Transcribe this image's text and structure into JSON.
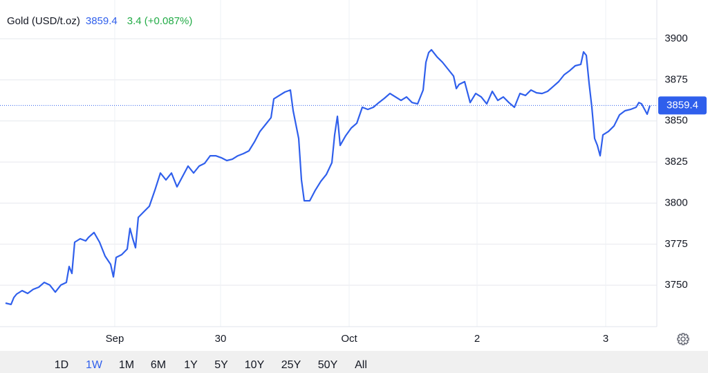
{
  "header": {
    "symbol": "Gold (USD/t.oz)",
    "change": "3.4 (+0.087%)"
  },
  "range_buttons": [
    "1D",
    "1W",
    "1M",
    "6M",
    "1Y",
    "5Y",
    "10Y",
    "25Y",
    "50Y",
    "All"
  ],
  "selected_range": 1,
  "chart_data": {
    "type": "line",
    "last_value": 3859.4,
    "x": [
      8,
      16,
      20,
      24,
      32,
      40,
      48,
      56,
      64,
      72,
      80,
      88,
      96,
      100,
      104,
      108,
      116,
      124,
      128,
      136,
      144,
      152,
      160,
      164,
      168,
      176,
      184,
      188,
      192,
      196,
      200,
      208,
      216,
      224,
      232,
      240,
      248,
      256,
      264,
      272,
      280,
      288,
      296,
      304,
      312,
      320,
      328,
      336,
      344,
      352,
      360,
      368,
      376,
      384,
      392,
      396,
      404,
      412,
      420,
      424,
      432,
      436,
      440,
      448,
      456,
      464,
      472,
      480,
      484,
      488,
      492,
      500,
      508,
      516,
      524,
      532,
      540,
      548,
      556,
      564,
      572,
      580,
      588,
      596,
      604,
      612,
      616,
      620,
      624,
      632,
      640,
      648,
      656,
      660,
      664,
      672,
      680,
      688,
      696,
      704,
      712,
      720,
      728,
      736,
      744,
      752,
      760,
      768,
      776,
      784,
      792,
      800,
      808,
      816,
      824,
      832,
      840,
      844,
      848,
      852,
      856,
      860,
      864,
      868,
      872,
      880,
      888,
      896,
      904,
      912,
      920,
      924,
      928,
      936,
      940
    ],
    "series": [
      {
        "color": "#2f5fec",
        "values": [
          3739.1,
          3738.3,
          3742.5,
          3744.6,
          3746.7,
          3745.0,
          3747.5,
          3748.8,
          3751.7,
          3750.1,
          3745.8,
          3750.1,
          3751.7,
          3761.4,
          3757.2,
          3776.2,
          3778.3,
          3777.0,
          3779.1,
          3782.1,
          3776.2,
          3767.7,
          3762.7,
          3755.1,
          3766.9,
          3768.6,
          3772.0,
          3784.6,
          3778.3,
          3772.8,
          3791.3,
          3794.7,
          3798.1,
          3807.8,
          3818.3,
          3814.1,
          3818.3,
          3809.9,
          3816.2,
          3822.5,
          3818.3,
          3822.5,
          3824.2,
          3828.8,
          3828.8,
          3827.6,
          3825.9,
          3826.7,
          3828.8,
          3830.1,
          3831.8,
          3837.2,
          3843.6,
          3847.8,
          3852.0,
          3863.4,
          3865.5,
          3867.6,
          3868.8,
          3856.2,
          3839.3,
          3814.1,
          3801.4,
          3801.4,
          3807.8,
          3813.2,
          3817.4,
          3824.6,
          3841.5,
          3852.8,
          3835.1,
          3841.0,
          3845.7,
          3848.6,
          3858.3,
          3857.0,
          3858.3,
          3861.2,
          3863.8,
          3866.7,
          3864.6,
          3862.5,
          3864.6,
          3861.2,
          3860.4,
          3868.8,
          3885.7,
          3891.6,
          3893.3,
          3889.0,
          3885.7,
          3881.5,
          3877.3,
          3869.7,
          3872.2,
          3873.9,
          3861.2,
          3866.7,
          3864.6,
          3860.4,
          3868.0,
          3862.5,
          3864.6,
          3861.2,
          3858.3,
          3866.7,
          3865.5,
          3868.8,
          3867.1,
          3866.7,
          3868.0,
          3870.9,
          3873.9,
          3878.1,
          3880.6,
          3883.6,
          3884.4,
          3892.0,
          3889.9,
          3873.0,
          3858.3,
          3839.3,
          3835.1,
          3828.8,
          3841.5,
          3843.6,
          3846.9,
          3853.7,
          3856.2,
          3857.0,
          3858.3,
          3861.2,
          3860.4,
          3854.1,
          3859.4
        ]
      }
    ],
    "xlim": [
      0,
      950
    ],
    "xticks": [
      {
        "value": 166,
        "label": "Sep"
      },
      {
        "value": 319,
        "label": "30"
      },
      {
        "value": 505,
        "label": "Oct"
      },
      {
        "value": 690,
        "label": "2"
      },
      {
        "value": 876,
        "label": "3"
      }
    ],
    "ylim": [
      3724.8,
      3923.6
    ],
    "yticks": [
      3750,
      3775,
      3800,
      3825,
      3850,
      3875,
      3900
    ],
    "grid": true
  }
}
